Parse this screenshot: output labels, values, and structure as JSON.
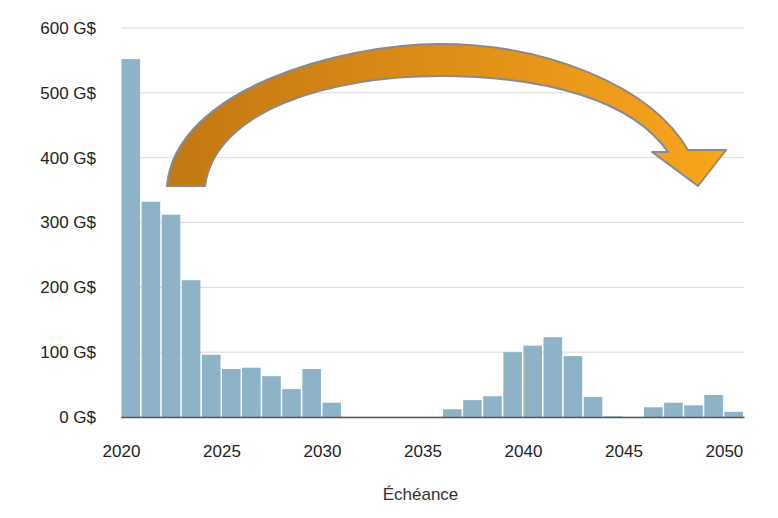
{
  "chart_data": {
    "type": "bar",
    "x_label": "Échéance",
    "x": [
      2020,
      2021,
      2022,
      2023,
      2024,
      2025,
      2026,
      2027,
      2028,
      2029,
      2030,
      2031,
      2032,
      2033,
      2034,
      2035,
      2036,
      2037,
      2038,
      2039,
      2040,
      2041,
      2042,
      2043,
      2044,
      2045,
      2046,
      2047,
      2048,
      2049,
      2050
    ],
    "values": [
      552,
      332,
      312,
      211,
      96,
      74,
      76,
      63,
      43,
      74,
      22,
      0,
      0,
      0,
      0,
      0,
      12,
      26,
      32,
      100,
      110,
      123,
      94,
      31,
      1,
      0,
      15,
      22,
      18,
      34,
      8
    ],
    "color": "#8fb3c6",
    "xlim": [
      2020,
      2051
    ],
    "xticks": [
      2020,
      2025,
      2030,
      2035,
      2040,
      2045,
      2050
    ],
    "ylim": [
      0,
      600
    ],
    "yticks": [
      {
        "value": 0,
        "label": "0 G$"
      },
      {
        "value": 100,
        "label": "100 G$"
      },
      {
        "value": 200,
        "label": "200 G$"
      },
      {
        "value": 300,
        "label": "300 G$"
      },
      {
        "value": 400,
        "label": "400 G$"
      },
      {
        "value": 500,
        "label": "500 G$"
      },
      {
        "value": 600,
        "label": "600 G$"
      }
    ],
    "grid": true
  }
}
